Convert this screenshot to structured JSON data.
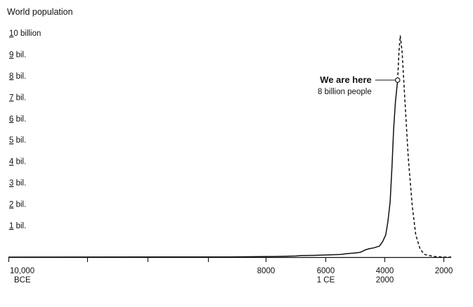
{
  "chart_data": {
    "type": "line",
    "title": "World population",
    "y_tick_labels": [
      {
        "value": 1,
        "label": "1 bil."
      },
      {
        "value": 2,
        "label": "2 bil."
      },
      {
        "value": 3,
        "label": "3 bil."
      },
      {
        "value": 4,
        "label": "4 bil."
      },
      {
        "value": 5,
        "label": "5 bil."
      },
      {
        "value": 6,
        "label": "6 bil."
      },
      {
        "value": 7,
        "label": "7 bil."
      },
      {
        "value": 8,
        "label": "8 bil."
      },
      {
        "value": 9,
        "label": "9 bil."
      },
      {
        "value": 10,
        "label": "10 billion"
      }
    ],
    "ylim": [
      0,
      10
    ],
    "x_tick_labels": [
      {
        "line1": "10,000",
        "line2": "BCE"
      },
      {
        "line1": "",
        "line2": ""
      },
      {
        "line1": "",
        "line2": ""
      },
      {
        "line1": "",
        "line2": ""
      },
      {
        "line1": "8000",
        "line2": ""
      },
      {
        "line1": "6000",
        "line2": "1 CE"
      },
      {
        "line1": "4000",
        "line2": "2000"
      },
      {
        "line1": "2000",
        "line2": ""
      }
    ],
    "series": [
      {
        "style": "solid",
        "points": [
          [
            0.0,
            0.0
          ],
          [
            0.5,
            0.01
          ],
          [
            0.6,
            0.03
          ],
          [
            0.65,
            0.05
          ],
          [
            0.66,
            0.07
          ],
          [
            0.69,
            0.08
          ],
          [
            0.72,
            0.1
          ],
          [
            0.75,
            0.12
          ],
          [
            0.765,
            0.16
          ],
          [
            0.78,
            0.18
          ],
          [
            0.795,
            0.22
          ],
          [
            0.805,
            0.32
          ],
          [
            0.815,
            0.38
          ],
          [
            0.825,
            0.42
          ],
          [
            0.838,
            0.5
          ],
          [
            0.845,
            0.7
          ],
          [
            0.852,
            1.0
          ],
          [
            0.857,
            1.6
          ],
          [
            0.862,
            2.5
          ],
          [
            0.866,
            4.0
          ],
          [
            0.87,
            5.8
          ],
          [
            0.874,
            7.0
          ],
          [
            0.877,
            7.6
          ],
          [
            0.879,
            8.0
          ]
        ]
      },
      {
        "style": "dashed",
        "points": [
          [
            0.879,
            8.0
          ],
          [
            0.882,
            9.3
          ],
          [
            0.885,
            10.0
          ],
          [
            0.889,
            9.3
          ],
          [
            0.895,
            7.2
          ],
          [
            0.903,
            4.5
          ],
          [
            0.912,
            2.3
          ],
          [
            0.92,
            1.0
          ],
          [
            0.93,
            0.35
          ],
          [
            0.94,
            0.12
          ],
          [
            0.96,
            0.03
          ],
          [
            0.985,
            0.0
          ],
          [
            1.0,
            0.0
          ]
        ]
      }
    ],
    "annotation": {
      "title": "We are here",
      "subtitle": "8 billion people",
      "x": 0.879,
      "y": 8.0
    }
  }
}
